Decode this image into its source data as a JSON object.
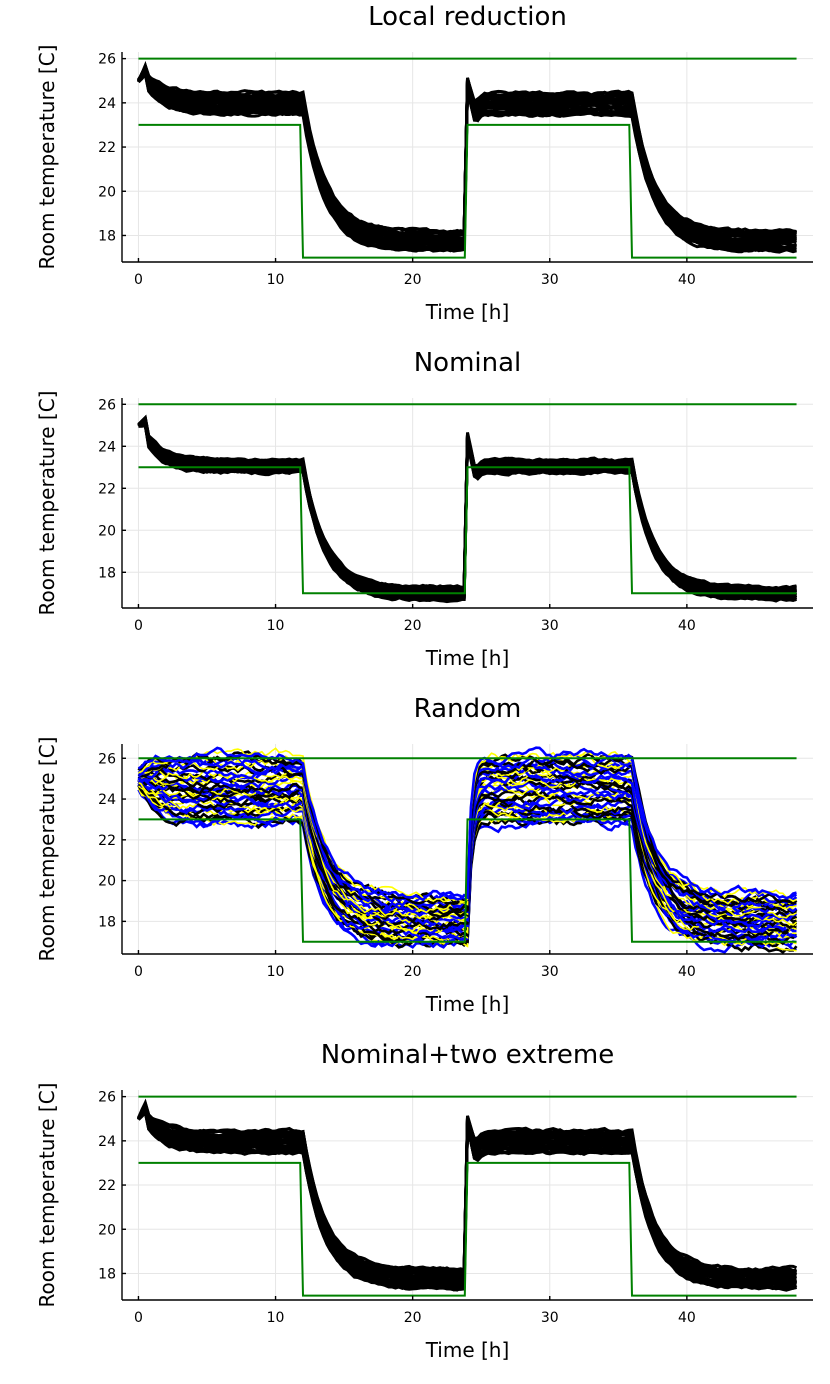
{
  "chart_data": [
    {
      "type": "line",
      "title": "Local reduction",
      "xlabel": "Time [h]",
      "ylabel": "Room temperature [C]",
      "xlim": [
        -1.2,
        49.2
      ],
      "ylim": [
        16.8,
        26.3
      ],
      "xticks": [
        0,
        10,
        20,
        30,
        40
      ],
      "yticks": [
        18,
        20,
        22,
        24,
        26
      ],
      "grid": true,
      "legend": "none",
      "band": {
        "day_center": 23.95,
        "day_half_width": 0.5,
        "night_center": 17.75,
        "night_half_width": 0.45,
        "start": 25.0,
        "start_peak": 25.6,
        "color": "#000000"
      },
      "comfort_bounds": {
        "upper": 26,
        "lower": [
          {
            "x": 0,
            "y": 23
          },
          {
            "x": 11.8,
            "y": 23
          },
          {
            "x": 12,
            "y": 17
          },
          {
            "x": 23.8,
            "y": 17
          },
          {
            "x": 24,
            "y": 23
          },
          {
            "x": 35.8,
            "y": 23
          },
          {
            "x": 36,
            "y": 17
          },
          {
            "x": 48,
            "y": 17
          }
        ],
        "color": "#008000"
      }
    },
    {
      "type": "line",
      "title": "Nominal",
      "xlabel": "Time [h]",
      "ylabel": "Room temperature [C]",
      "xlim": [
        -1.2,
        49.2
      ],
      "ylim": [
        16.3,
        26.3
      ],
      "xticks": [
        0,
        10,
        20,
        30,
        40
      ],
      "yticks": [
        18,
        20,
        22,
        24,
        26
      ],
      "grid": true,
      "legend": "none",
      "band": {
        "day_center": 23.05,
        "day_half_width": 0.3,
        "night_center": 17.0,
        "night_half_width": 0.3,
        "start": 25.0,
        "start_peak": 25.2,
        "color": "#000000"
      },
      "comfort_bounds": {
        "upper": 26,
        "lower": [
          {
            "x": 0,
            "y": 23
          },
          {
            "x": 11.8,
            "y": 23
          },
          {
            "x": 12,
            "y": 17
          },
          {
            "x": 23.8,
            "y": 17
          },
          {
            "x": 24,
            "y": 23
          },
          {
            "x": 35.8,
            "y": 23
          },
          {
            "x": 36,
            "y": 17
          },
          {
            "x": 48,
            "y": 17
          }
        ],
        "color": "#008000"
      }
    },
    {
      "type": "line",
      "title": "Random",
      "xlabel": "Time [h]",
      "ylabel": "Room temperature [C]",
      "xlim": [
        -1.2,
        49.2
      ],
      "ylim": [
        16.4,
        26.7
      ],
      "xticks": [
        0,
        10,
        20,
        30,
        40
      ],
      "yticks": [
        18,
        20,
        22,
        24,
        26
      ],
      "grid": true,
      "legend": "none",
      "band": {
        "day_low": 22.8,
        "day_high": 26.2,
        "night_low": 16.8,
        "night_high": 19.3,
        "start": 25.0,
        "colors": [
          "#0000ff",
          "#000000",
          "#ffff00"
        ]
      },
      "comfort_bounds": {
        "upper": 26,
        "lower": [
          {
            "x": 0,
            "y": 23
          },
          {
            "x": 11.8,
            "y": 23
          },
          {
            "x": 12,
            "y": 17
          },
          {
            "x": 23.8,
            "y": 17
          },
          {
            "x": 24,
            "y": 23
          },
          {
            "x": 35.8,
            "y": 23
          },
          {
            "x": 36,
            "y": 17
          },
          {
            "x": 48,
            "y": 17
          }
        ],
        "color": "#008000"
      }
    },
    {
      "type": "line",
      "title": "Nominal+two extreme",
      "xlabel": "Time [h]",
      "ylabel": "Room temperature [C]",
      "xlim": [
        -1.2,
        49.2
      ],
      "ylim": [
        16.8,
        26.3
      ],
      "xticks": [
        0,
        10,
        20,
        30,
        40
      ],
      "yticks": [
        18,
        20,
        22,
        24,
        26
      ],
      "grid": true,
      "legend": "none",
      "band": {
        "day_center": 23.95,
        "day_half_width": 0.5,
        "night_center": 17.75,
        "night_half_width": 0.45,
        "start": 25.0,
        "start_peak": 25.6,
        "color": "#000000"
      },
      "comfort_bounds": {
        "upper": 26,
        "lower": [
          {
            "x": 0,
            "y": 23
          },
          {
            "x": 11.8,
            "y": 23
          },
          {
            "x": 12,
            "y": 17
          },
          {
            "x": 23.8,
            "y": 17
          },
          {
            "x": 24,
            "y": 23
          },
          {
            "x": 35.8,
            "y": 23
          },
          {
            "x": 36,
            "y": 17
          },
          {
            "x": 48,
            "y": 17
          }
        ],
        "color": "#008000"
      }
    }
  ]
}
